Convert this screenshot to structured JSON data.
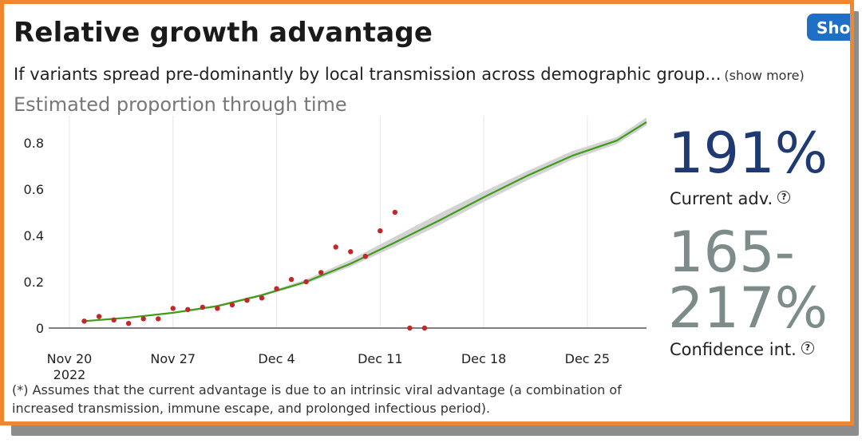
{
  "header": {
    "title": "Relative growth advantage",
    "button_label": "Sho"
  },
  "description": {
    "text": "If variants spread pre-dominantly by local transmission across demographic group...",
    "show_more": "(show more)"
  },
  "chart_data": {
    "type": "line",
    "title": "Estimated proportion through time",
    "x_tick_labels": [
      "Nov 20",
      "Nov 27",
      "Dec 4",
      "Dec 11",
      "Dec 18",
      "Dec 25"
    ],
    "x_tick_sublabel": "2022",
    "y_tick_labels": [
      "0",
      "0.2",
      "0.4",
      "0.6",
      "0.8"
    ],
    "xlim": [
      "2022-11-20",
      "2022-12-29"
    ],
    "ylim": [
      0,
      0.9
    ],
    "grid": "vertical",
    "series": [
      {
        "type": "line",
        "color": "#3f9c1a",
        "band_color": "#d3d3d3",
        "points": [
          {
            "x": "2022-11-21",
            "y": 0.03,
            "lo": 0.03,
            "hi": 0.03
          },
          {
            "x": "2022-11-24",
            "y": 0.045,
            "lo": 0.043,
            "hi": 0.047
          },
          {
            "x": "2022-11-27",
            "y": 0.066,
            "lo": 0.063,
            "hi": 0.069
          },
          {
            "x": "2022-11-30",
            "y": 0.095,
            "lo": 0.09,
            "hi": 0.1
          },
          {
            "x": "2022-12-03",
            "y": 0.142,
            "lo": 0.137,
            "hi": 0.148
          },
          {
            "x": "2022-12-06",
            "y": 0.2,
            "lo": 0.192,
            "hi": 0.21
          },
          {
            "x": "2022-12-09",
            "y": 0.278,
            "lo": 0.265,
            "hi": 0.295
          },
          {
            "x": "2022-12-12",
            "y": 0.37,
            "lo": 0.352,
            "hi": 0.395
          },
          {
            "x": "2022-12-15",
            "y": 0.465,
            "lo": 0.445,
            "hi": 0.495
          },
          {
            "x": "2022-12-18",
            "y": 0.565,
            "lo": 0.545,
            "hi": 0.59
          },
          {
            "x": "2022-12-21",
            "y": 0.66,
            "lo": 0.64,
            "hi": 0.68
          },
          {
            "x": "2022-12-24",
            "y": 0.745,
            "lo": 0.728,
            "hi": 0.765
          },
          {
            "x": "2022-12-27",
            "y": 0.81,
            "lo": 0.795,
            "hi": 0.825
          },
          {
            "x": "2022-12-29",
            "y": 0.89,
            "lo": 0.875,
            "hi": 0.91
          }
        ]
      },
      {
        "type": "scatter",
        "color": "#c0282a",
        "points": [
          {
            "x": "2022-11-21",
            "y": 0.03
          },
          {
            "x": "2022-11-22",
            "y": 0.05
          },
          {
            "x": "2022-11-23",
            "y": 0.035
          },
          {
            "x": "2022-11-24",
            "y": 0.02
          },
          {
            "x": "2022-11-25",
            "y": 0.04
          },
          {
            "x": "2022-11-26",
            "y": 0.04
          },
          {
            "x": "2022-11-27",
            "y": 0.085
          },
          {
            "x": "2022-11-28",
            "y": 0.08
          },
          {
            "x": "2022-11-29",
            "y": 0.09
          },
          {
            "x": "2022-11-30",
            "y": 0.085
          },
          {
            "x": "2022-12-01",
            "y": 0.1
          },
          {
            "x": "2022-12-02",
            "y": 0.12
          },
          {
            "x": "2022-12-03",
            "y": 0.13
          },
          {
            "x": "2022-12-04",
            "y": 0.17
          },
          {
            "x": "2022-12-05",
            "y": 0.21
          },
          {
            "x": "2022-12-06",
            "y": 0.2
          },
          {
            "x": "2022-12-07",
            "y": 0.24
          },
          {
            "x": "2022-12-08",
            "y": 0.35
          },
          {
            "x": "2022-12-09",
            "y": 0.33
          },
          {
            "x": "2022-12-10",
            "y": 0.31
          },
          {
            "x": "2022-12-11",
            "y": 0.42
          },
          {
            "x": "2022-12-12",
            "y": 0.5
          },
          {
            "x": "2022-12-13",
            "y": 0.0
          },
          {
            "x": "2022-12-14",
            "y": 0.0
          }
        ]
      }
    ]
  },
  "stats": {
    "current_adv_value": "191%",
    "current_adv_label": "Current adv.",
    "ci_value": "165-217%",
    "ci_label": "Confidence int."
  },
  "footnote": "(*) Assumes that the current advantage is due to an intrinsic viral advantage (a combination of increased transmission, immune escape, and prolonged infectious period).",
  "colors": {
    "frame": "#f0862e",
    "button": "#1f6fc7",
    "adv_value": "#1f3a73",
    "ci_value": "#7e8b8b"
  }
}
